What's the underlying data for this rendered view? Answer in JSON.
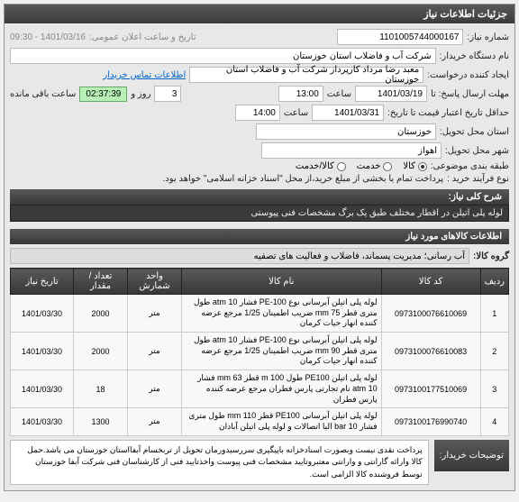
{
  "header": {
    "title": "جزئیات اطلاعات نیاز"
  },
  "top": {
    "need_no_label": "شماره نیاز:",
    "need_no": "1101005744000167",
    "announce_label": "تاریخ و ساعت اعلان عمومی:",
    "announce_value": "1401/03/16 - 09:30",
    "buyer_org_label": "نام دستگاه خریدار:",
    "buyer_org": "شرکت آب و فاضلاب استان خوزستان",
    "creator_label": "ایجاد کننده درخواست:",
    "creator": "معبد رضا مرداد کارپرداز شرکت آب و فاضلاب استان خوزستان",
    "contact_label": "اطلاعات تماس خریدار",
    "deadline_label": "مهلت ارسال پاسخ: تا",
    "deadline_date": "1401/03/19",
    "time_label": "ساعت",
    "deadline_time": "13:00",
    "day_label": "روز و",
    "days": "3",
    "remain_label": "ساعت باقی مانده",
    "remain_time": "02:37:39",
    "validity_label": "حداقل تاریخ اعتبار قیمت تا تاریخ:",
    "validity_date": "1401/03/31",
    "validity_time": "14:00",
    "province_label": "استان محل تحویل:",
    "province": "خوزستان",
    "city_label": "شهر محل تحویل:",
    "city": "اهواز",
    "category_label": "طبقه بندی موضوعی:",
    "radios": {
      "goods": "کالا",
      "service": "خدمت",
      "both": "کالا/خدمت"
    },
    "process_label": "نوع فرآیند خرید :",
    "process_text": "پرداخت تمام یا بخشی از مبلغ خرید،از محل \"اسناد خزانه اسلامی\" خواهد بود."
  },
  "need": {
    "header": "شرح کلی نیاز:",
    "text": "لوله پلی اتیلن در اقطار مختلف طبق یک برگ مشخصات فنی پیوستی"
  },
  "items_header": "اطلاعات کالاهای مورد نیاز",
  "group": {
    "label": "گروه کالا:",
    "value": "آب رسانی؛ مدیریت پسماند، فاضلاب و فعالیت های تصفیه"
  },
  "table": {
    "cols": [
      "ردیف",
      "کد کالا",
      "نام کالا",
      "واحد شمارش",
      "تعداد / مقدار",
      "تاریخ نیاز"
    ],
    "rows": [
      {
        "n": "1",
        "code": "0973100076610069",
        "name": "لوله پلی اتیلن آبرسانی نوع PE-100 فشار atm 10 طول متری قطر mm 75 ضریب اطمینان 1/25 مرجع عرضه کننده انهار حیات کرمان",
        "unit": "متر",
        "qty": "2000",
        "date": "1401/03/30"
      },
      {
        "n": "2",
        "code": "0973100076610083",
        "name": "لوله پلی اتیلن آبرسانی نوع PE-100 فشار atm 10 طول متری قطر mm 90 ضریب اطمینان 1/25 مرجع عرضه کننده انهار حیات کرمان",
        "unit": "متر",
        "qty": "2000",
        "date": "1401/03/30"
      },
      {
        "n": "3",
        "code": "0973100177510069",
        "name": "لوله پلی اتیلن PE100 طول m 100 قطر mm 63 فشار atm 10 نام تجارتی پارس فطران مرجع عرضه کننده پارس فطران",
        "unit": "متر",
        "qty": "18",
        "date": "1401/03/30"
      },
      {
        "n": "4",
        "code": "0973100176990740",
        "name": "لوله پلی اتیلن آبرسانی PE100 قطر mm 110 طول متری فشار bar 10 البا اتصالات و لوله پلی اتیلن آبادان",
        "unit": "متر",
        "qty": "1300",
        "date": "1401/03/30"
      }
    ]
  },
  "buyer_note": {
    "label": "توضیحات خریدار:",
    "text": "پرداخت نقدی نیست وبصورت اسنادخزانه باپیگیری سررسیدورمان تحویل از تربخسام آبفااستان خوزستان می باشد.حمل کالا وارائه گارانتی و وارانتی معتبروتایید مشخصات فنی پیوست واخذتایید فنی از کارشناسان فنی شرکت آبفا خوزستان توسط فروشنده کالا الزامی است."
  },
  "colors": {
    "header_bg": "#444",
    "countdown_bg": "#b8f0b8"
  }
}
